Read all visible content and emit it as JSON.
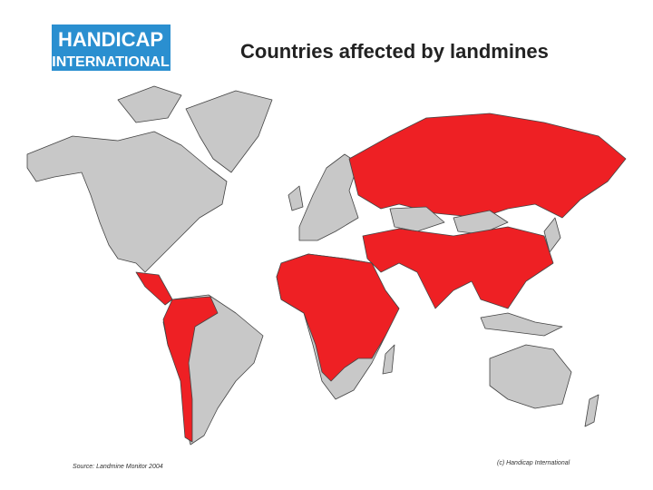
{
  "header": {
    "logo": [
      "HANDICAP",
      "INTERNATIONAL"
    ],
    "title": "Countries affected by landmines"
  },
  "footer": {
    "source": "Source: Landmine Monitor 2004",
    "credit": "(c) Handicap International"
  }
}
